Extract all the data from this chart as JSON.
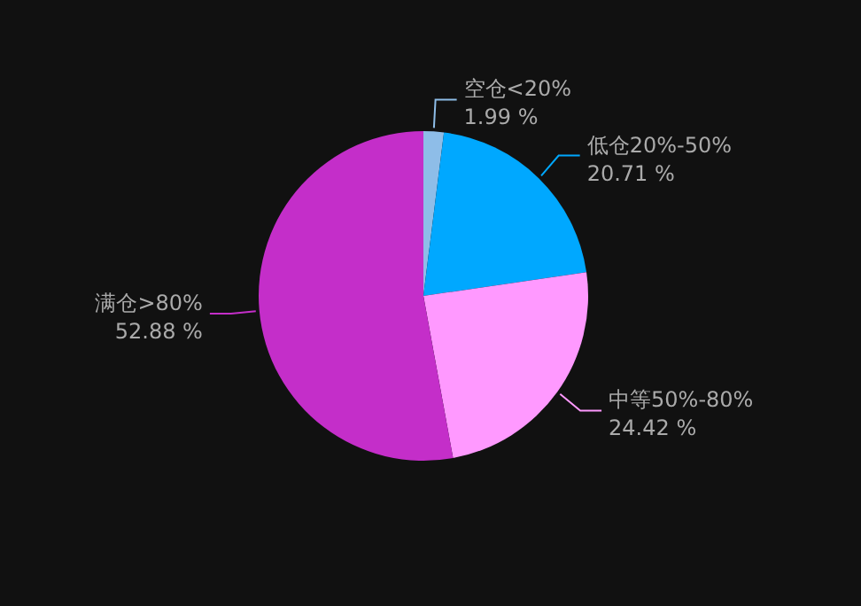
{
  "chart_data": {
    "type": "pie",
    "categories": [
      "空仓<20%",
      "低仓20%-50%",
      "中等50%-80%",
      "满仓>80%"
    ],
    "values": [
      1.99,
      20.71,
      24.42,
      52.88
    ],
    "value_labels": [
      "1.99 %",
      "20.71 %",
      "24.42 %",
      "52.88 %"
    ],
    "colors": [
      "#8ebde8",
      "#00a8ff",
      "#ff99ff",
      "#c42ec9"
    ]
  }
}
